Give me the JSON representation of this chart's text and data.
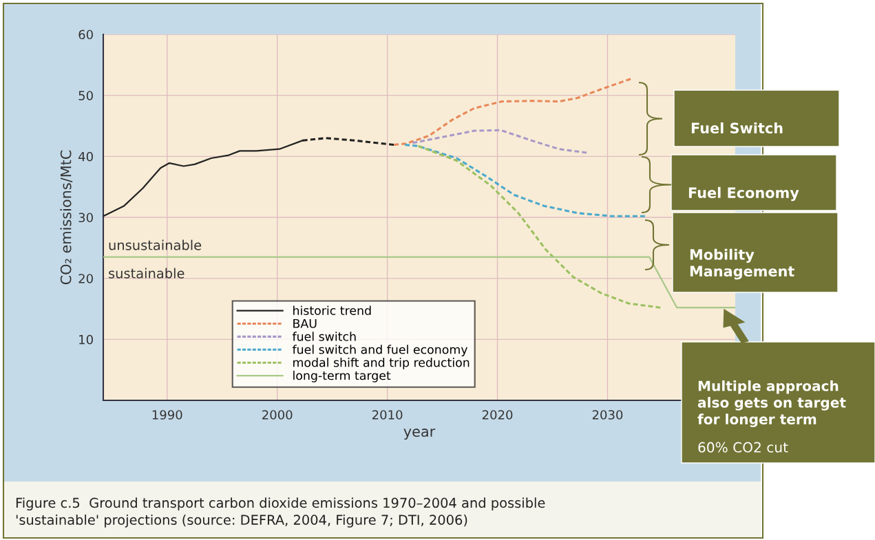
{
  "chart_data": {
    "type": "line",
    "xlabel": "year",
    "ylabel": "CO₂ emissions/MtC",
    "xlim": [
      1984.2,
      2041.6
    ],
    "ylim": [
      0,
      60
    ],
    "xticks": [
      1990,
      2000,
      2010,
      2020,
      2030
    ],
    "yticks": [
      10,
      20,
      30,
      40,
      50,
      60
    ],
    "grid": true,
    "legend": "bottom left",
    "series": [
      {
        "name": "historic trend",
        "color": "#222222",
        "line_style": "solid",
        "x": [
          1984.2,
          1986.1,
          1987.8,
          1989.4,
          1990.2,
          1991.5,
          1992.5,
          1994,
          1995.6,
          1996.6,
          1998.1,
          2000.2,
          2002.3
        ],
        "values": [
          30.2,
          31.9,
          34.8,
          38.1,
          38.9,
          38.4,
          38.7,
          39.7,
          40.2,
          40.9,
          40.9,
          41.2,
          42.6
        ]
      },
      {
        "color": "#222222",
        "line_style": "dashed",
        "x": [
          2002.3,
          2004.4,
          2007.1,
          2010.6
        ],
        "values": [
          42.6,
          43.0,
          42.6,
          41.9
        ]
      },
      {
        "name": "BAU",
        "color": "#e8875a",
        "line_style": "dashed",
        "x": [
          2010.6,
          2011.7,
          2013.8,
          2015.9,
          2017.9,
          2020.4,
          2023.1,
          2025.6,
          2027.3,
          2029.4,
          2032.1
        ],
        "values": [
          41.9,
          42.1,
          43.4,
          46.0,
          47.9,
          49.0,
          49.1,
          49.0,
          49.6,
          51.0,
          52.7
        ]
      },
      {
        "name": "fuel switch",
        "color": "#a898c8",
        "line_style": "dashed",
        "x": [
          2012.3,
          2014.8,
          2017.9,
          2020.3,
          2023.1,
          2025.6,
          2028.1
        ],
        "values": [
          42.2,
          43.1,
          44.2,
          44.3,
          42.6,
          41.2,
          40.6
        ]
      },
      {
        "name": "fuel switch and fuel economy",
        "color": "#4aa8cc",
        "line_style": "dashed",
        "x": [
          2011.6,
          2012.8,
          2016.3,
          2019.0,
          2021.5,
          2024.2,
          2027.3,
          2030.4,
          2033.4
        ],
        "values": [
          41.9,
          41.7,
          39.7,
          36.7,
          33.7,
          31.9,
          30.7,
          30.2,
          30.2
        ]
      },
      {
        "name": "modal shift and trip reduction",
        "color": "#9cc060",
        "line_style": "dashed",
        "x": [
          2012.8,
          2016.3,
          2019.4,
          2021.9,
          2024.4,
          2026.9,
          2029.4,
          2031.9,
          2034.8
        ],
        "values": [
          41.7,
          39.3,
          35.2,
          30.7,
          24.7,
          20.2,
          17.6,
          15.9,
          15.2
        ]
      },
      {
        "name": "long-term target",
        "color": "#a8c888",
        "line_style": "solid",
        "x": [
          1984.2,
          2033.8,
          2036.3,
          2041.6
        ],
        "values": [
          23.5,
          23.5,
          15.2,
          15.2
        ]
      }
    ],
    "annotations": [
      "unsustainable",
      "sustainable",
      "Fuel Switch",
      "Fuel Economy",
      "Mobility\nManagement",
      "Multiple approach\nalso gets on target\nfor longer term",
      "60% CO2 cut",
      "Figure c.5  Ground transport carbon dioxide emissions 1970–2004 and possible\n'sustainable' projections (source: DEFRA, 2004, Figure 7; DTI, 2006)"
    ]
  }
}
